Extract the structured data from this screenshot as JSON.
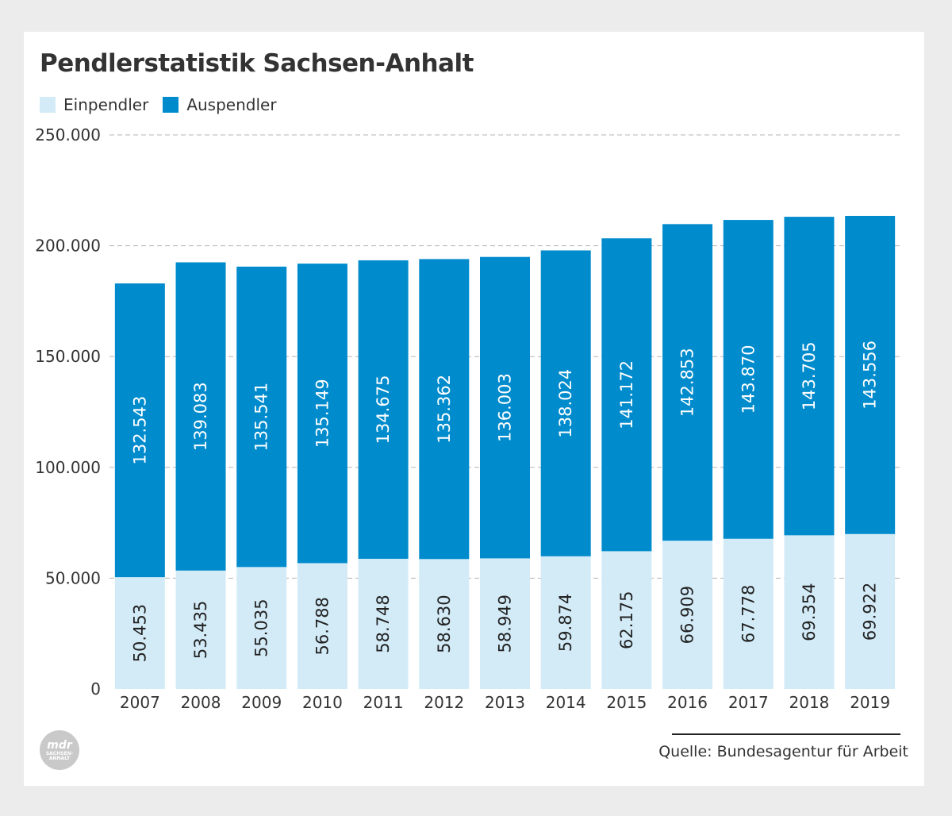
{
  "chart_data": {
    "type": "bar",
    "stacked": true,
    "title": "Pendlerstatistik Sachsen-Anhalt",
    "categories": [
      "2007",
      "2008",
      "2009",
      "2010",
      "2011",
      "2012",
      "2013",
      "2014",
      "2015",
      "2016",
      "2017",
      "2018",
      "2019"
    ],
    "series": [
      {
        "name": "Einpendler",
        "color": "#d3ebf7",
        "values": [
          50453,
          53435,
          55035,
          56788,
          58748,
          58630,
          58949,
          59874,
          62175,
          66909,
          67778,
          69354,
          69922
        ],
        "labels": [
          "50.453",
          "53.435",
          "55.035",
          "56.788",
          "58.748",
          "58.630",
          "58.949",
          "59.874",
          "62.175",
          "66.909",
          "67.778",
          "69.354",
          "69.922"
        ]
      },
      {
        "name": "Auspendler",
        "color": "#008bcd",
        "values": [
          132543,
          139083,
          135541,
          135149,
          134675,
          135362,
          136003,
          138024,
          141172,
          142853,
          143870,
          143705,
          143556
        ],
        "labels": [
          "132.543",
          "139.083",
          "135.541",
          "135.149",
          "134.675",
          "135.362",
          "136.003",
          "138.024",
          "141.172",
          "142.853",
          "143.870",
          "143.705",
          "143.556"
        ]
      }
    ],
    "ylim": [
      0,
      250000
    ],
    "yticks": [
      0,
      50000,
      100000,
      150000,
      200000,
      250000
    ],
    "ytick_labels": [
      "0",
      "50.000",
      "100.000",
      "150.000",
      "200.000",
      "250.000"
    ],
    "grid": true,
    "legend": "top-left",
    "source": "Quelle: Bundesagentur für Arbeit"
  },
  "logo": {
    "word": "mdr",
    "sub_line1": "SACHSEN-",
    "sub_line2": "ANHALT"
  }
}
